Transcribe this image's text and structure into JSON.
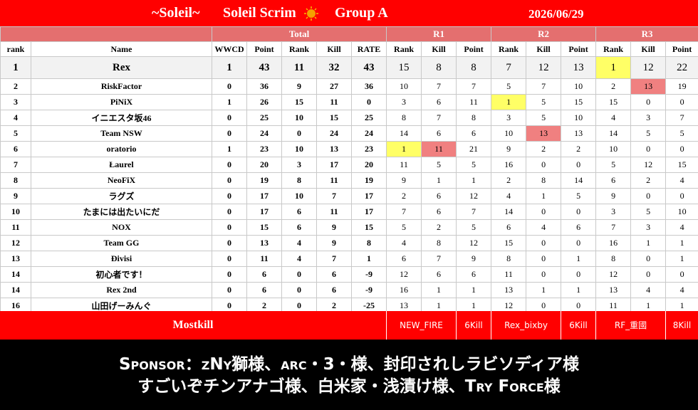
{
  "header": {
    "left": "~Soleil~",
    "title": "Soleil Scrim",
    "group": "Group A",
    "date": "2026/06/29"
  },
  "table": {
    "groups": [
      "Total",
      "R1",
      "R2",
      "R3"
    ],
    "columns": [
      "rank",
      "Name",
      "WWCD",
      "Point",
      "Rank",
      "Kill",
      "RATE",
      "Rank",
      "Kill",
      "Point",
      "Rank",
      "Kill",
      "Point",
      "Rank",
      "Kill",
      "Point"
    ],
    "rows": [
      [
        1,
        "Rex",
        1,
        43,
        11,
        32,
        43,
        15,
        8,
        8,
        7,
        12,
        13,
        1,
        12,
        22
      ],
      [
        2,
        "RiskFactor",
        0,
        36,
        9,
        27,
        36,
        10,
        7,
        7,
        5,
        7,
        10,
        2,
        13,
        19
      ],
      [
        3,
        "PiNiX",
        1,
        26,
        15,
        11,
        0,
        3,
        6,
        11,
        1,
        5,
        15,
        15,
        0,
        0
      ],
      [
        4,
        "イニエスタ坂46",
        0,
        25,
        10,
        15,
        25,
        8,
        7,
        8,
        3,
        5,
        10,
        4,
        3,
        7
      ],
      [
        5,
        "Team NSW",
        0,
        24,
        0,
        24,
        24,
        14,
        6,
        6,
        10,
        13,
        13,
        14,
        5,
        5
      ],
      [
        6,
        "oratorio",
        1,
        23,
        10,
        13,
        23,
        1,
        11,
        21,
        9,
        2,
        2,
        10,
        0,
        0
      ],
      [
        7,
        "Łaurel",
        0,
        20,
        3,
        17,
        20,
        11,
        5,
        5,
        16,
        0,
        0,
        5,
        12,
        15
      ],
      [
        8,
        "NeoFiX",
        0,
        19,
        8,
        11,
        19,
        9,
        1,
        1,
        2,
        8,
        14,
        6,
        2,
        4
      ],
      [
        9,
        "ラグズ",
        0,
        17,
        10,
        7,
        17,
        2,
        6,
        12,
        4,
        1,
        5,
        9,
        0,
        0
      ],
      [
        10,
        "たまには出たいにだ",
        0,
        17,
        6,
        11,
        17,
        7,
        6,
        7,
        14,
        0,
        0,
        3,
        5,
        10
      ],
      [
        11,
        "NOX",
        0,
        15,
        6,
        9,
        15,
        5,
        2,
        5,
        6,
        4,
        6,
        7,
        3,
        4
      ],
      [
        12,
        "Team GG",
        0,
        13,
        4,
        9,
        8,
        4,
        8,
        12,
        15,
        0,
        0,
        16,
        1,
        1
      ],
      [
        13,
        "Đivisi",
        0,
        11,
        4,
        7,
        1,
        6,
        7,
        9,
        8,
        0,
        1,
        8,
        0,
        1
      ],
      [
        14,
        "初心者です！",
        0,
        6,
        0,
        6,
        -9,
        12,
        6,
        6,
        11,
        0,
        0,
        12,
        0,
        0
      ],
      [
        14,
        "Rex 2nd",
        0,
        6,
        0,
        6,
        -9,
        16,
        1,
        1,
        13,
        1,
        1,
        13,
        4,
        4
      ],
      [
        16,
        "山田げーみんぐ",
        0,
        2,
        0,
        2,
        -25,
        13,
        1,
        1,
        12,
        0,
        0,
        11,
        1,
        1
      ]
    ]
  },
  "footer": {
    "label": "Mostkill",
    "entries": [
      {
        "name": "NEW_FIRE",
        "kills": "6Kill"
      },
      {
        "name": "Rex_bixby",
        "kills": "6Kill"
      },
      {
        "name": "RF_重國",
        "kills": "8Kill"
      }
    ]
  },
  "sponsor": {
    "lines": [
      "Sponsor：zNy獅様、arc・3・様、封印されしラビソディア様",
      "すごいぞチンアナゴ様、白米家・浅漬け様、Try Force様"
    ]
  }
}
